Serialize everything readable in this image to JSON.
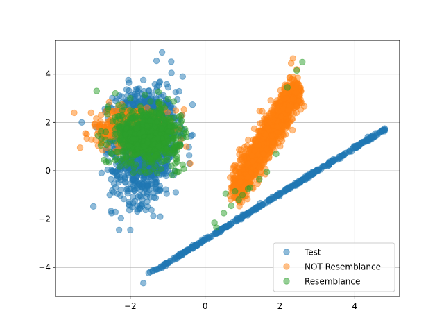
{
  "chart_data": {
    "type": "scatter",
    "title": "",
    "xlabel": "",
    "ylabel": "",
    "xlim": [
      -4.0,
      5.2
    ],
    "ylim": [
      -5.2,
      5.4
    ],
    "xticks": [
      -2,
      0,
      2,
      4
    ],
    "yticks": [
      -4,
      -2,
      0,
      2,
      4
    ],
    "xtick_labels": [
      "−2",
      "0",
      "2",
      "4"
    ],
    "ytick_labels": [
      "−4",
      "−2",
      "0",
      "2",
      "4"
    ],
    "grid": true,
    "legend_position": "lower-right",
    "alpha": 0.5,
    "series": [
      {
        "name": "Test",
        "color": "#1f77b4",
        "shapes": [
          {
            "kind": "blob",
            "cx": -1.6,
            "cy": 1.6,
            "sx": 0.42,
            "sy": 0.85,
            "rho": 0.0,
            "n": 1100
          },
          {
            "kind": "blob",
            "cx": -1.7,
            "cy": 0.0,
            "sx": 0.4,
            "sy": 0.7,
            "rho": 0.0,
            "n": 300
          },
          {
            "kind": "line",
            "x0": -1.5,
            "x1": 4.85,
            "slope": 0.95,
            "intercept": -2.85,
            "noise": 0.03,
            "n": 420
          }
        ],
        "points": [
          [
            -2.3,
            -2.45
          ],
          [
            -2.0,
            -2.45
          ],
          [
            -1.65,
            -4.65
          ],
          [
            -1.15,
            4.9
          ],
          [
            -1.3,
            4.55
          ],
          [
            -0.6,
            3.9
          ],
          [
            -1.2,
            -1.9
          ],
          [
            -1.8,
            -1.6
          ],
          [
            -2.5,
            -1.75
          ],
          [
            4.8,
            1.75
          ],
          [
            4.55,
            1.55
          ],
          [
            4.35,
            1.4
          ],
          [
            -2.05,
            3.75
          ],
          [
            -0.9,
            4.05
          ],
          [
            -2.55,
            -1.0
          ]
        ]
      },
      {
        "name": "NOT Resemblance",
        "color": "#ff7f0e",
        "shapes": [
          {
            "kind": "blob",
            "cx": -2.0,
            "cy": 1.85,
            "sx": 0.5,
            "sy": 0.4,
            "rho": 0.2,
            "n": 350
          },
          {
            "kind": "line",
            "x0": 0.8,
            "x1": 2.45,
            "slope": 2.55,
            "intercept": -2.9,
            "noise": 0.35,
            "n": 1400
          }
        ],
        "points": [
          [
            -3.5,
            2.4
          ],
          [
            -3.2,
            1.55
          ],
          [
            -3.05,
            2.4
          ],
          [
            -2.8,
            2.05
          ],
          [
            -2.45,
            2.45
          ],
          [
            -0.4,
            0.3
          ],
          [
            -0.5,
            1.0
          ],
          [
            -0.7,
            1.0
          ],
          [
            -0.65,
            1.3
          ],
          [
            -0.85,
            1.65
          ],
          [
            2.3,
            4.45
          ],
          [
            2.35,
            4.65
          ],
          [
            2.45,
            4.2
          ],
          [
            0.7,
            -0.9
          ],
          [
            0.75,
            -0.35
          ]
        ]
      },
      {
        "name": "Resemblance",
        "color": "#2ca02c",
        "shapes": [
          {
            "kind": "blob",
            "cx": -1.55,
            "cy": 1.45,
            "sx": 0.42,
            "sy": 0.55,
            "rho": 0.0,
            "n": 800
          }
        ],
        "points": [
          [
            -2.9,
            3.3
          ],
          [
            -2.4,
            3.2
          ],
          [
            -2.6,
            2.65
          ],
          [
            -2.0,
            3.0
          ],
          [
            0.25,
            -2.15
          ],
          [
            0.3,
            -2.35
          ],
          [
            0.5,
            -1.75
          ],
          [
            0.7,
            -1.45
          ],
          [
            0.9,
            -1.2
          ],
          [
            1.0,
            -1.0
          ],
          [
            1.15,
            -0.75
          ],
          [
            1.2,
            -0.7
          ],
          [
            1.45,
            -0.35
          ],
          [
            1.65,
            -0.05
          ],
          [
            1.9,
            0.7
          ],
          [
            2.2,
            3.45
          ],
          [
            2.45,
            4.15
          ],
          [
            2.6,
            4.5
          ],
          [
            0.55,
            -0.95
          ],
          [
            0.8,
            -0.85
          ],
          [
            -0.8,
            0.0
          ],
          [
            -0.6,
            0.25
          ],
          [
            -0.9,
            0.2
          ],
          [
            -0.5,
            1.4
          ],
          [
            -2.7,
            0.45
          ]
        ]
      }
    ]
  }
}
